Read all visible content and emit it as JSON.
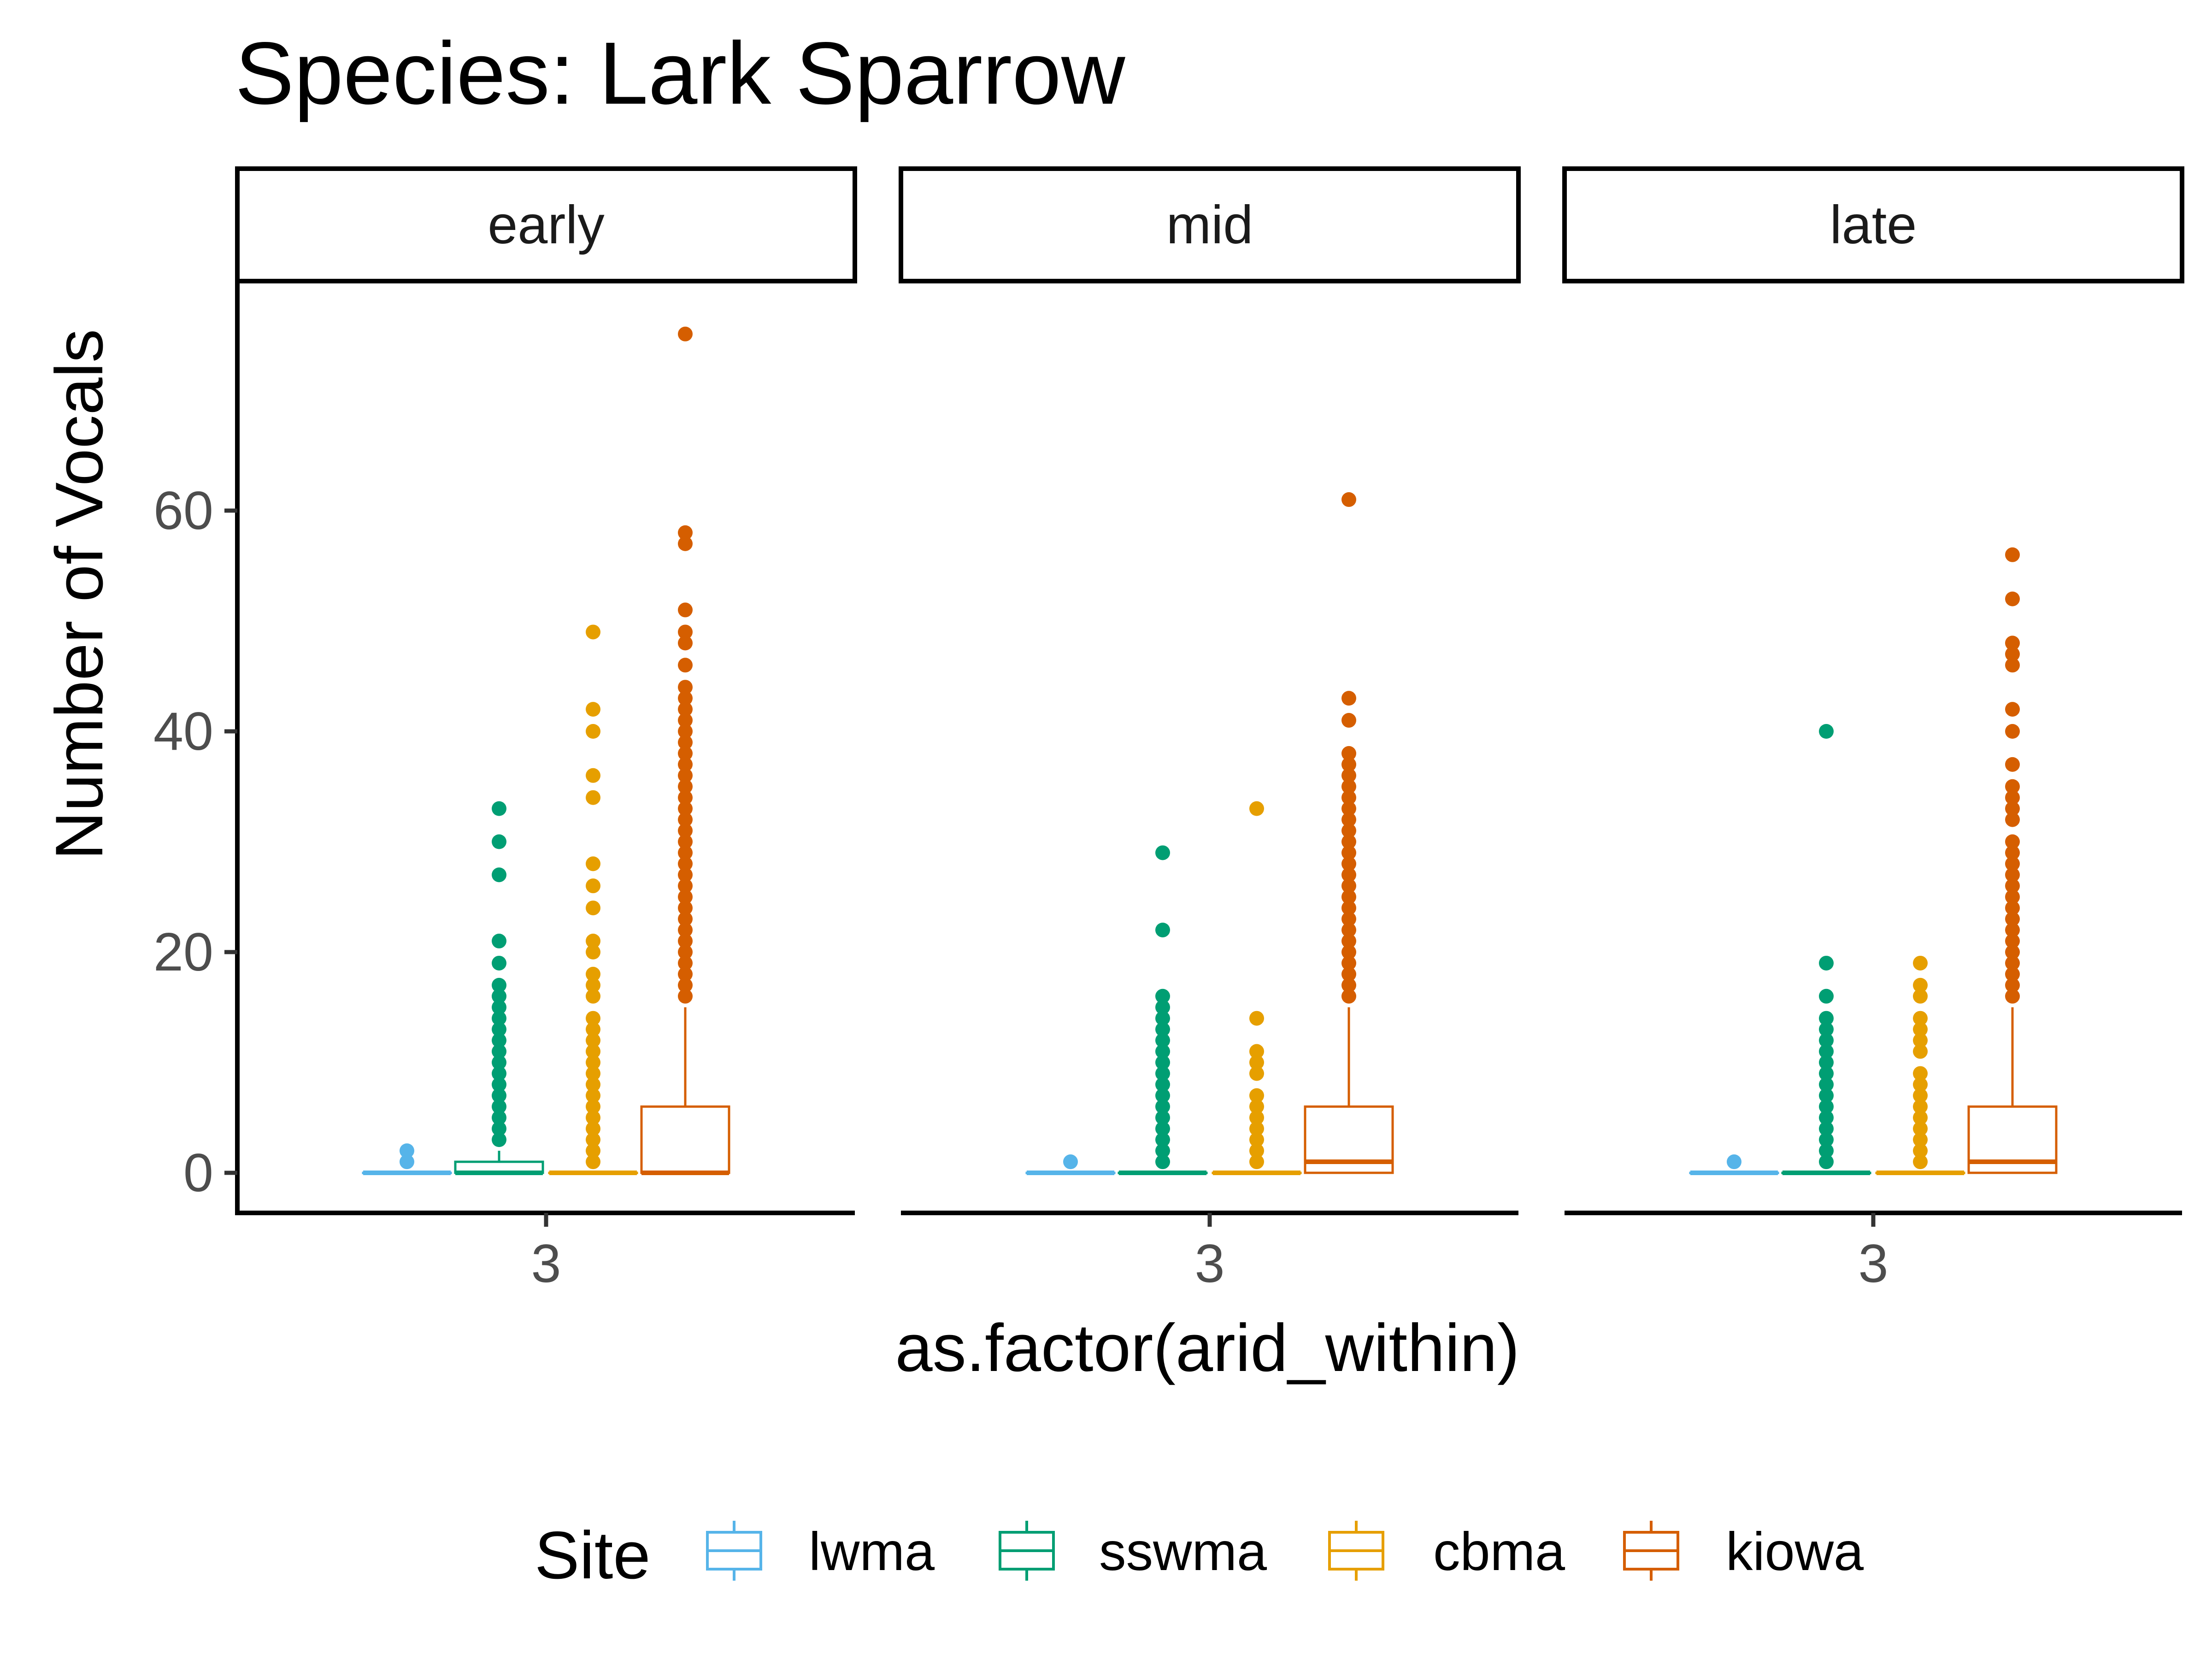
{
  "chart_data": {
    "type": "box",
    "title": "Species: Lark Sparrow",
    "xlabel": "as.factor(arid_within)",
    "ylabel": "Number of Vocals",
    "ylim": [
      -3.8,
      80
    ],
    "yticks": [
      0,
      20,
      40,
      60
    ],
    "x_categories": [
      "3"
    ],
    "facets": [
      "early",
      "mid",
      "late"
    ],
    "legend": {
      "title": "Site",
      "position": "bottom",
      "items": [
        {
          "name": "lwma",
          "color": "#56B4E9"
        },
        {
          "name": "sswma",
          "color": "#009E73"
        },
        {
          "name": "cbma",
          "color": "#E69F00"
        },
        {
          "name": "kiowa",
          "color": "#D55E00"
        }
      ]
    },
    "grid": false,
    "panels": [
      {
        "facet": "early",
        "boxes": [
          {
            "site": "lwma",
            "q1": 0,
            "median": 0,
            "q3": 0,
            "whisker_low": 0,
            "whisker_high": 0,
            "outliers": [
              1,
              2
            ]
          },
          {
            "site": "sswma",
            "q1": 0,
            "median": 0,
            "q3": 1,
            "whisker_low": 0,
            "whisker_high": 2,
            "outliers": [
              3,
              4,
              5,
              6,
              7,
              8,
              9,
              10,
              11,
              12,
              13,
              14,
              15,
              16,
              17,
              19,
              21,
              27,
              30,
              33
            ]
          },
          {
            "site": "cbma",
            "q1": 0,
            "median": 0,
            "q3": 0,
            "whisker_low": 0,
            "whisker_high": 0,
            "outliers": [
              1,
              2,
              3,
              4,
              5,
              6,
              7,
              8,
              9,
              10,
              11,
              12,
              13,
              14,
              16,
              17,
              18,
              20,
              21,
              24,
              26,
              28,
              34,
              36,
              40,
              42,
              49
            ]
          },
          {
            "site": "kiowa",
            "q1": 0,
            "median": 0,
            "q3": 6,
            "whisker_low": 0,
            "whisker_high": 15,
            "outliers": [
              16,
              17,
              18,
              19,
              20,
              21,
              22,
              23,
              24,
              25,
              26,
              27,
              28,
              29,
              30,
              31,
              32,
              33,
              34,
              35,
              36,
              37,
              38,
              39,
              40,
              41,
              42,
              43,
              44,
              46,
              48,
              49,
              51,
              57,
              58,
              76
            ]
          }
        ]
      },
      {
        "facet": "mid",
        "boxes": [
          {
            "site": "lwma",
            "q1": 0,
            "median": 0,
            "q3": 0,
            "whisker_low": 0,
            "whisker_high": 0,
            "outliers": [
              1
            ]
          },
          {
            "site": "sswma",
            "q1": 0,
            "median": 0,
            "q3": 0,
            "whisker_low": 0,
            "whisker_high": 0,
            "outliers": [
              1,
              2,
              3,
              4,
              5,
              6,
              7,
              8,
              9,
              10,
              11,
              12,
              13,
              14,
              15,
              16,
              22,
              29
            ]
          },
          {
            "site": "cbma",
            "q1": 0,
            "median": 0,
            "q3": 0,
            "whisker_low": 0,
            "whisker_high": 0,
            "outliers": [
              1,
              2,
              3,
              4,
              5,
              6,
              7,
              9,
              10,
              11,
              14,
              33
            ]
          },
          {
            "site": "kiowa",
            "q1": 0,
            "median": 1,
            "q3": 6,
            "whisker_low": 0,
            "whisker_high": 15,
            "outliers": [
              16,
              17,
              18,
              19,
              20,
              21,
              22,
              23,
              24,
              25,
              26,
              27,
              28,
              29,
              30,
              31,
              32,
              33,
              34,
              35,
              36,
              37,
              38,
              41,
              43,
              61
            ]
          }
        ]
      },
      {
        "facet": "late",
        "boxes": [
          {
            "site": "lwma",
            "q1": 0,
            "median": 0,
            "q3": 0,
            "whisker_low": 0,
            "whisker_high": 0,
            "outliers": [
              1
            ]
          },
          {
            "site": "sswma",
            "q1": 0,
            "median": 0,
            "q3": 0,
            "whisker_low": 0,
            "whisker_high": 0,
            "outliers": [
              1,
              2,
              3,
              4,
              5,
              6,
              7,
              8,
              9,
              10,
              11,
              12,
              13,
              14,
              16,
              19,
              40
            ]
          },
          {
            "site": "cbma",
            "q1": 0,
            "median": 0,
            "q3": 0,
            "whisker_low": 0,
            "whisker_high": 0,
            "outliers": [
              1,
              2,
              3,
              4,
              5,
              6,
              7,
              8,
              9,
              11,
              12,
              13,
              14,
              16,
              17,
              19
            ]
          },
          {
            "site": "kiowa",
            "q1": 0,
            "median": 1,
            "q3": 6,
            "whisker_low": 0,
            "whisker_high": 15,
            "outliers": [
              16,
              17,
              18,
              19,
              20,
              21,
              22,
              23,
              24,
              25,
              26,
              27,
              28,
              29,
              30,
              32,
              33,
              34,
              35,
              37,
              40,
              42,
              46,
              47,
              48,
              52,
              56
            ]
          }
        ]
      }
    ]
  }
}
